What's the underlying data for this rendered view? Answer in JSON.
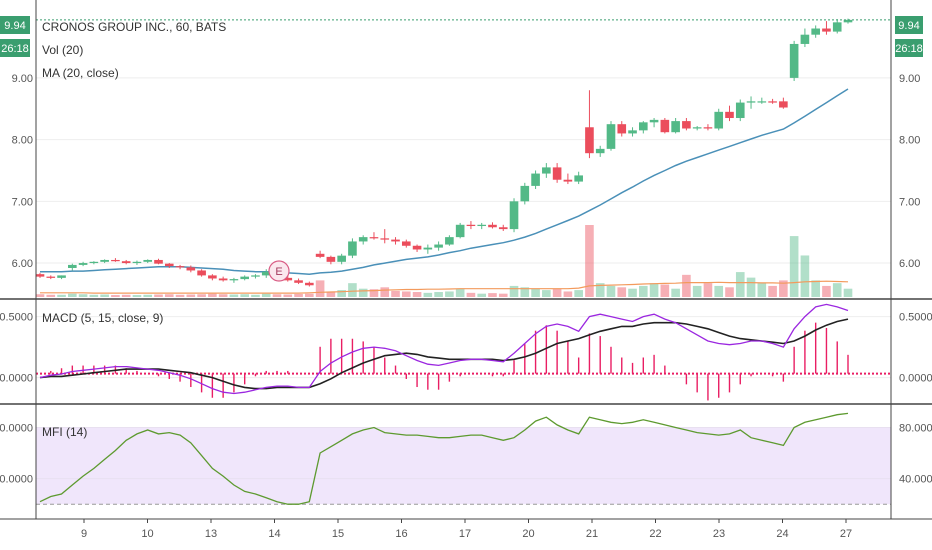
{
  "header": {
    "title": "CRONOS GROUP INC., 60, BATS",
    "price_badge": "9.94",
    "timer_badge": "26:18",
    "vol_label": "Vol (20)",
    "ma_label": "MA (20, close)",
    "earnings_marker": "E"
  },
  "colors": {
    "up": "#53b987",
    "down": "#eb4d5c",
    "ma": "#4a90b8",
    "vol_ma": "#f39a5c",
    "macd": "#9b27e0",
    "signal": "#222222",
    "hist": "#e91e63",
    "mfi": "#5d9a2f",
    "mfi_band": "#f0e6fb",
    "badge": "#3a9e6f"
  },
  "chart_data": [
    {
      "type": "candlestick",
      "name": "price",
      "x_tick_labels": [
        "9",
        "10",
        "13",
        "14",
        "15",
        "16",
        "17",
        "20",
        "21",
        "22",
        "23",
        "24",
        "27"
      ],
      "y_ticks": [
        "9.00",
        "8.00",
        "7.00",
        "6.00"
      ],
      "y_tick_values": [
        9,
        8,
        7,
        6
      ],
      "ylim": [
        5.45,
        10.1
      ],
      "last_price": 9.94,
      "ohlc": [
        [
          5.82,
          5.84,
          5.76,
          5.78
        ],
        [
          5.78,
          5.8,
          5.74,
          5.76
        ],
        [
          5.76,
          5.8,
          5.74,
          5.8
        ],
        [
          5.92,
          5.99,
          5.88,
          5.97
        ],
        [
          5.97,
          6.02,
          5.95,
          6.0
        ],
        [
          6.0,
          6.03,
          5.98,
          6.02
        ],
        [
          6.02,
          6.06,
          6.0,
          6.05
        ],
        [
          6.05,
          6.08,
          6.02,
          6.03
        ],
        [
          6.03,
          6.05,
          5.98,
          6.0
        ],
        [
          6.0,
          6.04,
          5.97,
          6.02
        ],
        [
          6.02,
          6.06,
          6.0,
          6.05
        ],
        [
          6.05,
          6.07,
          5.98,
          5.99
        ],
        [
          5.99,
          6.0,
          5.92,
          5.95
        ],
        [
          5.95,
          5.97,
          5.9,
          5.93
        ],
        [
          5.93,
          5.96,
          5.85,
          5.88
        ],
        [
          5.88,
          5.9,
          5.78,
          5.8
        ],
        [
          5.8,
          5.82,
          5.72,
          5.75
        ],
        [
          5.75,
          5.78,
          5.7,
          5.72
        ],
        [
          5.72,
          5.76,
          5.68,
          5.74
        ],
        [
          5.74,
          5.8,
          5.72,
          5.78
        ],
        [
          5.78,
          5.82,
          5.75,
          5.8
        ],
        [
          5.8,
          5.9,
          5.76,
          5.86
        ],
        [
          5.86,
          5.9,
          5.74,
          5.76
        ],
        [
          5.76,
          5.8,
          5.7,
          5.72
        ],
        [
          5.72,
          5.75,
          5.66,
          5.68
        ],
        [
          5.68,
          5.7,
          5.62,
          5.64
        ],
        [
          6.15,
          6.2,
          6.08,
          6.1
        ],
        [
          6.1,
          6.12,
          5.98,
          6.02
        ],
        [
          6.02,
          6.15,
          5.98,
          6.12
        ],
        [
          6.12,
          6.4,
          6.08,
          6.35
        ],
        [
          6.35,
          6.45,
          6.3,
          6.42
        ],
        [
          6.42,
          6.5,
          6.38,
          6.4
        ],
        [
          6.4,
          6.55,
          6.32,
          6.38
        ],
        [
          6.38,
          6.42,
          6.3,
          6.35
        ],
        [
          6.35,
          6.38,
          6.25,
          6.28
        ],
        [
          6.28,
          6.3,
          6.18,
          6.22
        ],
        [
          6.22,
          6.3,
          6.15,
          6.25
        ],
        [
          6.25,
          6.35,
          6.2,
          6.3
        ],
        [
          6.3,
          6.45,
          6.28,
          6.42
        ],
        [
          6.42,
          6.65,
          6.4,
          6.62
        ],
        [
          6.62,
          6.68,
          6.55,
          6.6
        ],
        [
          6.6,
          6.65,
          6.55,
          6.62
        ],
        [
          6.62,
          6.66,
          6.56,
          6.58
        ],
        [
          6.58,
          6.62,
          6.52,
          6.55
        ],
        [
          6.55,
          7.05,
          6.5,
          7.0
        ],
        [
          7.0,
          7.3,
          6.95,
          7.25
        ],
        [
          7.25,
          7.5,
          7.2,
          7.45
        ],
        [
          7.45,
          7.62,
          7.38,
          7.55
        ],
        [
          7.55,
          7.62,
          7.3,
          7.35
        ],
        [
          7.35,
          7.45,
          7.28,
          7.32
        ],
        [
          7.32,
          7.48,
          7.28,
          7.42
        ],
        [
          8.2,
          8.8,
          7.7,
          7.78
        ],
        [
          7.78,
          7.9,
          7.72,
          7.85
        ],
        [
          7.85,
          8.3,
          7.82,
          8.25
        ],
        [
          8.25,
          8.3,
          8.05,
          8.1
        ],
        [
          8.1,
          8.2,
          8.05,
          8.15
        ],
        [
          8.15,
          8.3,
          8.1,
          8.28
        ],
        [
          8.28,
          8.35,
          8.2,
          8.32
        ],
        [
          8.32,
          8.35,
          8.1,
          8.12
        ],
        [
          8.12,
          8.35,
          8.1,
          8.3
        ],
        [
          8.3,
          8.35,
          8.15,
          8.18
        ],
        [
          8.18,
          8.22,
          8.15,
          8.2
        ],
        [
          8.2,
          8.25,
          8.15,
          8.18
        ],
        [
          8.18,
          8.5,
          8.15,
          8.45
        ],
        [
          8.45,
          8.55,
          8.3,
          8.35
        ],
        [
          8.35,
          8.65,
          8.3,
          8.6
        ],
        [
          8.6,
          8.7,
          8.5,
          8.62
        ],
        [
          8.62,
          8.68,
          8.58,
          8.62
        ],
        [
          8.62,
          8.66,
          8.58,
          8.6
        ],
        [
          8.62,
          8.68,
          8.5,
          8.52
        ],
        [
          9.0,
          9.6,
          8.95,
          9.55
        ],
        [
          9.55,
          9.8,
          9.5,
          9.7
        ],
        [
          9.7,
          9.85,
          9.65,
          9.8
        ],
        [
          9.8,
          9.92,
          9.7,
          9.75
        ],
        [
          9.75,
          9.95,
          9.72,
          9.9
        ],
        [
          9.9,
          9.96,
          9.88,
          9.94
        ]
      ],
      "ma20": [
        5.86,
        5.86,
        5.86,
        5.87,
        5.87,
        5.88,
        5.89,
        5.9,
        5.91,
        5.92,
        5.93,
        5.94,
        5.94,
        5.94,
        5.93,
        5.92,
        5.91,
        5.9,
        5.88,
        5.87,
        5.86,
        5.86,
        5.85,
        5.84,
        5.83,
        5.82,
        5.84,
        5.85,
        5.87,
        5.9,
        5.93,
        5.97,
        6.0,
        6.03,
        6.06,
        6.08,
        6.1,
        6.13,
        6.17,
        6.2,
        6.24,
        6.27,
        6.3,
        6.33,
        6.37,
        6.42,
        6.48,
        6.55,
        6.62,
        6.69,
        6.76,
        6.85,
        6.94,
        7.04,
        7.14,
        7.23,
        7.33,
        7.42,
        7.5,
        7.58,
        7.65,
        7.71,
        7.77,
        7.83,
        7.89,
        7.95,
        8.01,
        8.07,
        8.12,
        8.17,
        8.27,
        8.38,
        8.49,
        8.6,
        8.71,
        8.82
      ],
      "volume": [
        0.1,
        0.08,
        0.08,
        0.12,
        0.1,
        0.08,
        0.09,
        0.07,
        0.08,
        0.07,
        0.08,
        0.09,
        0.1,
        0.08,
        0.09,
        0.1,
        0.12,
        0.1,
        0.09,
        0.1,
        0.08,
        0.12,
        0.1,
        0.09,
        0.11,
        0.12,
        0.6,
        0.2,
        0.25,
        0.5,
        0.3,
        0.28,
        0.35,
        0.22,
        0.2,
        0.18,
        0.15,
        0.18,
        0.2,
        0.3,
        0.15,
        0.12,
        0.14,
        0.12,
        0.4,
        0.35,
        0.3,
        0.25,
        0.3,
        0.2,
        0.25,
        2.6,
        0.5,
        0.4,
        0.35,
        0.3,
        0.4,
        0.5,
        0.45,
        0.3,
        0.8,
        0.4,
        0.5,
        0.4,
        0.35,
        0.9,
        0.7,
        0.5,
        0.4,
        0.6,
        2.2,
        1.5,
        0.6,
        0.4,
        0.5,
        0.3
      ],
      "vol_ma": [
        0.15,
        0.15,
        0.15,
        0.15,
        0.15,
        0.14,
        0.14,
        0.14,
        0.14,
        0.14,
        0.14,
        0.14,
        0.14,
        0.14,
        0.14,
        0.14,
        0.14,
        0.14,
        0.14,
        0.14,
        0.14,
        0.14,
        0.14,
        0.14,
        0.14,
        0.15,
        0.17,
        0.18,
        0.19,
        0.21,
        0.22,
        0.23,
        0.25,
        0.26,
        0.27,
        0.27,
        0.28,
        0.28,
        0.29,
        0.3,
        0.3,
        0.3,
        0.3,
        0.3,
        0.3,
        0.3,
        0.3,
        0.3,
        0.3,
        0.3,
        0.32,
        0.4,
        0.42,
        0.43,
        0.44,
        0.45,
        0.47,
        0.48,
        0.49,
        0.5,
        0.52,
        0.52,
        0.52,
        0.53,
        0.52,
        0.52,
        0.52,
        0.51,
        0.51,
        0.5,
        0.52,
        0.55,
        0.56,
        0.57,
        0.56,
        0.55
      ]
    },
    {
      "type": "line",
      "name": "macd",
      "label": "MACD (5, 15, close, 9)",
      "y_ticks": [
        "0.5000",
        "0.0000"
      ],
      "y_tick_values": [
        0.5,
        0
      ],
      "ylim": [
        -0.2,
        0.62
      ],
      "macd": [
        0.0,
        0.02,
        0.03,
        0.05,
        0.06,
        0.07,
        0.08,
        0.09,
        0.09,
        0.08,
        0.07,
        0.06,
        0.04,
        0.02,
        -0.01,
        -0.05,
        -0.09,
        -0.12,
        -0.13,
        -0.12,
        -0.1,
        -0.08,
        -0.07,
        -0.07,
        -0.08,
        -0.08,
        0.05,
        0.12,
        0.17,
        0.21,
        0.24,
        0.25,
        0.24,
        0.22,
        0.18,
        0.14,
        0.11,
        0.1,
        0.12,
        0.14,
        0.15,
        0.15,
        0.14,
        0.13,
        0.2,
        0.28,
        0.36,
        0.42,
        0.44,
        0.42,
        0.38,
        0.5,
        0.52,
        0.5,
        0.48,
        0.46,
        0.5,
        0.52,
        0.48,
        0.45,
        0.4,
        0.35,
        0.3,
        0.28,
        0.27,
        0.28,
        0.3,
        0.3,
        0.28,
        0.25,
        0.4,
        0.5,
        0.58,
        0.6,
        0.58,
        0.55
      ],
      "signal": [
        0.0,
        0.01,
        0.01,
        0.02,
        0.03,
        0.04,
        0.05,
        0.06,
        0.07,
        0.07,
        0.07,
        0.07,
        0.06,
        0.05,
        0.04,
        0.02,
        0.0,
        -0.03,
        -0.06,
        -0.08,
        -0.09,
        -0.09,
        -0.08,
        -0.08,
        -0.08,
        -0.08,
        -0.05,
        -0.01,
        0.04,
        0.08,
        0.12,
        0.15,
        0.18,
        0.19,
        0.2,
        0.19,
        0.17,
        0.16,
        0.15,
        0.15,
        0.15,
        0.15,
        0.15,
        0.14,
        0.15,
        0.17,
        0.2,
        0.24,
        0.28,
        0.3,
        0.32,
        0.35,
        0.38,
        0.4,
        0.42,
        0.42,
        0.44,
        0.45,
        0.45,
        0.45,
        0.44,
        0.42,
        0.4,
        0.37,
        0.34,
        0.32,
        0.31,
        0.3,
        0.29,
        0.28,
        0.3,
        0.34,
        0.39,
        0.43,
        0.46,
        0.48
      ]
    },
    {
      "type": "line",
      "name": "mfi",
      "label": "MFI (14)",
      "y_ticks": [
        "80.0000",
        "40.0000"
      ],
      "y_tick_values": [
        80,
        40
      ],
      "band": [
        20,
        80
      ],
      "ylim": [
        10,
        96
      ],
      "mfi": [
        22,
        26,
        28,
        35,
        42,
        48,
        55,
        62,
        70,
        75,
        78,
        75,
        76,
        74,
        68,
        58,
        48,
        42,
        35,
        30,
        28,
        25,
        22,
        20,
        20,
        22,
        60,
        65,
        70,
        75,
        78,
        80,
        76,
        75,
        74,
        74,
        73,
        72,
        72,
        73,
        74,
        74,
        72,
        70,
        72,
        78,
        85,
        88,
        82,
        78,
        75,
        88,
        86,
        84,
        83,
        84,
        86,
        84,
        82,
        80,
        78,
        76,
        75,
        74,
        75,
        78,
        72,
        70,
        68,
        66,
        80,
        84,
        86,
        88,
        90,
        91
      ]
    }
  ]
}
